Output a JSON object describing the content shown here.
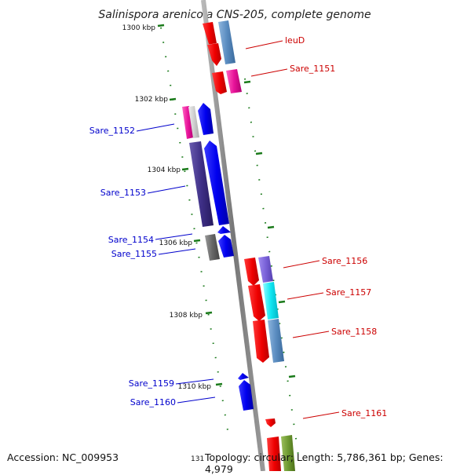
{
  "title": "Salinispora arenicola CNS-205, complete genome",
  "footer": {
    "accession": "Accession: NC_009953",
    "topology": "Topology: circular; Length: 5,786,361 bp; Genes: 4,979",
    "truncated_tick": "131"
  },
  "ticks": [
    "1300 kbp",
    "1302 kbp",
    "1304 kbp",
    "1306 kbp",
    "1308 kbp",
    "1310 kbp"
  ],
  "colors": {
    "forward_label": "#0000cc",
    "reverse_label": "#cc0000",
    "backbone": "#8a8a8a",
    "tick_mark": "#1a7a1a"
  },
  "genes": {
    "forward": [
      "Sare_1152",
      "Sare_1153",
      "Sare_1154",
      "Sare_1155",
      "Sare_1159",
      "Sare_1160"
    ],
    "reverse": [
      "leuD",
      "Sare_1151",
      "Sare_1156",
      "Sare_1157",
      "Sare_1158",
      "Sare_1161"
    ]
  }
}
